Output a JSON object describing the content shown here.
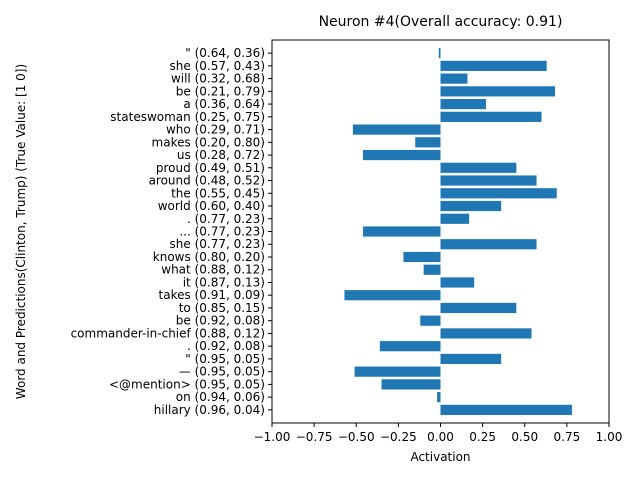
{
  "chart_data": {
    "type": "bar",
    "orientation": "horizontal",
    "title": "Neuron #4(Overall accuracy: 0.91)",
    "xlabel": "Activation",
    "ylabel": "Word and Predictions(Clinton, Trump) (True Value: [1 0])",
    "xlim": [
      -1.0,
      1.0
    ],
    "xticks": [
      "−1.00",
      "−0.75",
      "−0.50",
      "−0.25",
      "0.00",
      "0.25",
      "0.50",
      "0.75",
      "1.00"
    ],
    "grid": false,
    "bar_color": "#1f77b4",
    "categories": [
      "hillary (0.96, 0.04)",
      "on (0.94, 0.06)",
      "<@mention> (0.95, 0.05)",
      "— (0.95, 0.05)",
      "\" (0.95, 0.05)",
      ". (0.92, 0.08)",
      "commander-in-chief (0.88, 0.12)",
      "be (0.92, 0.08)",
      "to (0.85, 0.15)",
      "takes (0.91, 0.09)",
      "it (0.87, 0.13)",
      "what (0.88, 0.12)",
      "knows (0.80, 0.20)",
      "she (0.77, 0.23)",
      "... (0.77, 0.23)",
      ". (0.77, 0.23)",
      "world (0.60, 0.40)",
      "the (0.55, 0.45)",
      "around (0.48, 0.52)",
      "proud (0.49, 0.51)",
      "us (0.28, 0.72)",
      "makes (0.20, 0.80)",
      "who (0.29, 0.71)",
      "stateswoman (0.25, 0.75)",
      "a (0.36, 0.64)",
      "be (0.21, 0.79)",
      "will (0.32, 0.68)",
      "she (0.57, 0.43)",
      "\" (0.64, 0.36)"
    ],
    "values": [
      0.78,
      -0.02,
      -0.35,
      -0.51,
      0.36,
      -0.36,
      0.54,
      -0.12,
      0.45,
      -0.57,
      0.2,
      -0.1,
      -0.22,
      0.57,
      -0.46,
      0.17,
      0.36,
      0.69,
      0.57,
      0.45,
      -0.46,
      -0.15,
      -0.52,
      0.6,
      0.27,
      0.68,
      0.16,
      0.63,
      -0.01
    ]
  }
}
